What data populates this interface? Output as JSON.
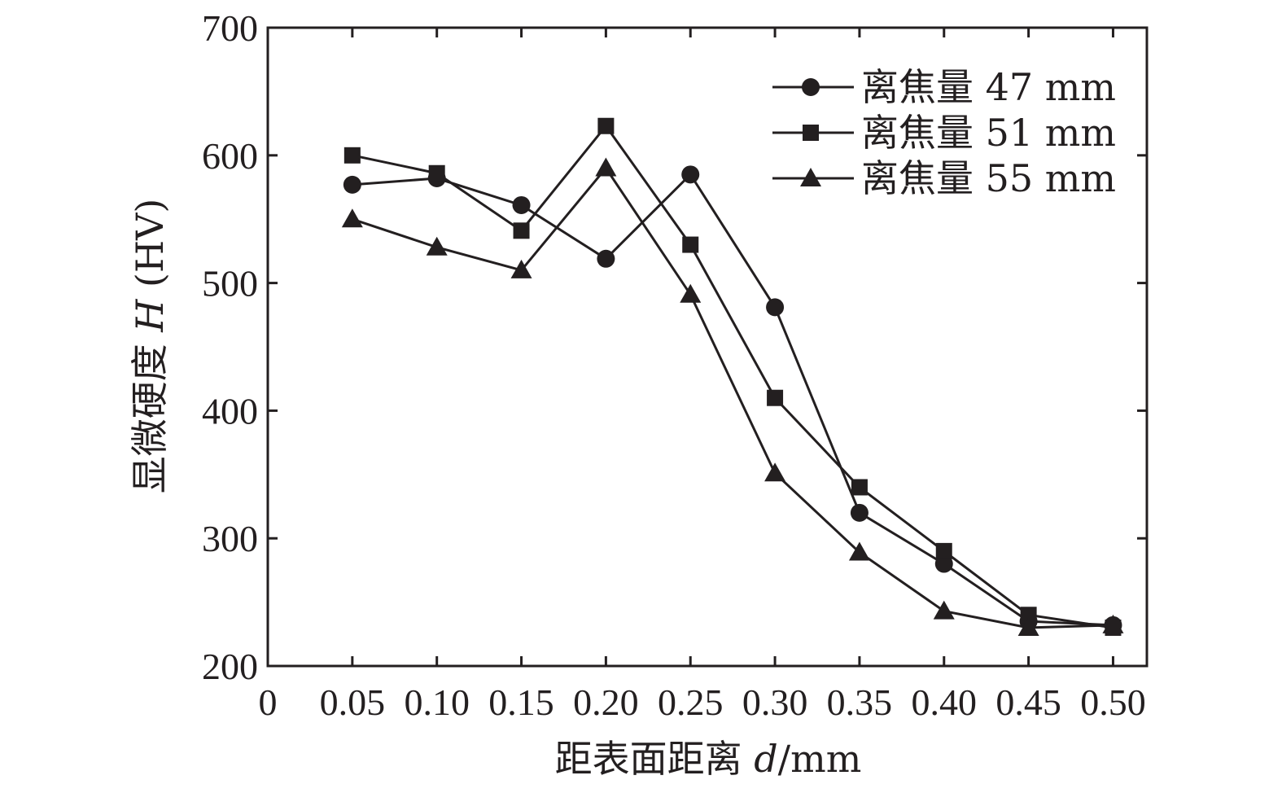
{
  "chart_data": {
    "type": "line",
    "title": "",
    "xlabel_prefix": "距表面距离 ",
    "xlabel_var": "d",
    "xlabel_unit": "/mm",
    "ylabel_prefix": "显微硬度 ",
    "ylabel_var": "H",
    "ylabel_unit": " (HV)",
    "x_origin_label": "0",
    "x": [
      0.05,
      0.1,
      0.15,
      0.2,
      0.25,
      0.3,
      0.35,
      0.4,
      0.45,
      0.5
    ],
    "x_tick_labels": [
      "0.05",
      "0.10",
      "0.15",
      "0.20",
      "0.25",
      "0.30",
      "0.35",
      "0.40",
      "0.45",
      "0.50"
    ],
    "xlim": [
      0,
      0.52
    ],
    "ylim": [
      200,
      700
    ],
    "y_ticks": [
      200,
      300,
      400,
      500,
      600,
      700
    ],
    "y_tick_labels": [
      "200",
      "300",
      "400",
      "500",
      "600",
      "700"
    ],
    "grid": false,
    "legend_position": "top-right",
    "series": [
      {
        "name": "离焦量 47 mm",
        "marker": "circle",
        "color": "#231f20",
        "values": [
          577,
          582,
          561,
          519,
          585,
          481,
          320,
          280,
          235,
          232
        ]
      },
      {
        "name": "离焦量 51 mm",
        "marker": "square",
        "color": "#231f20",
        "values": [
          600,
          586,
          541,
          623,
          530,
          410,
          340,
          290,
          240,
          230
        ]
      },
      {
        "name": "离焦量 55 mm",
        "marker": "triangle",
        "color": "#231f20",
        "values": [
          550,
          528,
          510,
          590,
          491,
          351,
          289,
          243,
          230,
          232
        ]
      }
    ]
  }
}
